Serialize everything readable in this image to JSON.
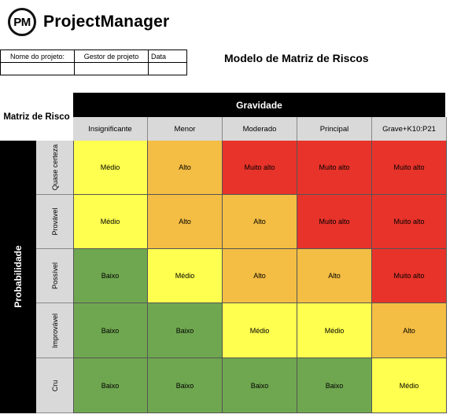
{
  "logo": {
    "mark": "PM",
    "name": "ProjectManager"
  },
  "info_table": {
    "headers": [
      "Nome do projeto:",
      "Gestor de projeto",
      "Data"
    ],
    "values": [
      "",
      "",
      ""
    ]
  },
  "title": "Modelo de Matriz de Riscos",
  "matrix": {
    "label": "Matriz de Risco",
    "severity_title": "Gravidade",
    "probability_title": "Probabilidade",
    "columns": [
      "Insignificante",
      "Menor",
      "Moderado",
      "Principal",
      "Grave+K10:P21"
    ],
    "rows": [
      {
        "label": "Quase certeza",
        "cells": [
          {
            "text": "Médio",
            "level": "medio"
          },
          {
            "text": "Alto",
            "level": "alto"
          },
          {
            "text": "Muito alto",
            "level": "muitoalto"
          },
          {
            "text": "Muito alto",
            "level": "muitoalto"
          },
          {
            "text": "Muito alto",
            "level": "muitoalto"
          }
        ]
      },
      {
        "label": "Provável",
        "cells": [
          {
            "text": "Médio",
            "level": "medio"
          },
          {
            "text": "Alto",
            "level": "alto"
          },
          {
            "text": "Alto",
            "level": "alto"
          },
          {
            "text": "Muito alto",
            "level": "muitoalto"
          },
          {
            "text": "Muito alto",
            "level": "muitoalto"
          }
        ]
      },
      {
        "label": "Possível",
        "cells": [
          {
            "text": "Baixo",
            "level": "baixo"
          },
          {
            "text": "Médio",
            "level": "medio"
          },
          {
            "text": "Alto",
            "level": "alto"
          },
          {
            "text": "Alto",
            "level": "alto"
          },
          {
            "text": "Muito alto",
            "level": "muitoalto"
          }
        ]
      },
      {
        "label": "Improvável",
        "cells": [
          {
            "text": "Baixo",
            "level": "baixo"
          },
          {
            "text": "Baixo",
            "level": "baixo"
          },
          {
            "text": "Médio",
            "level": "medio"
          },
          {
            "text": "Médio",
            "level": "medio"
          },
          {
            "text": "Alto",
            "level": "alto"
          }
        ]
      },
      {
        "label": "Cru",
        "cells": [
          {
            "text": "Baixo",
            "level": "baixo"
          },
          {
            "text": "Baixo",
            "level": "baixo"
          },
          {
            "text": "Baixo",
            "level": "baixo"
          },
          {
            "text": "Baixo",
            "level": "baixo"
          },
          {
            "text": "Médio",
            "level": "medio"
          }
        ]
      }
    ]
  },
  "colors": {
    "medio": "#ffff4f",
    "alto": "#f4bd43",
    "muitoalto": "#e8332a",
    "baixo": "#6fa750",
    "header_bg": "#000000",
    "subheader_bg": "#d9d9d9"
  }
}
